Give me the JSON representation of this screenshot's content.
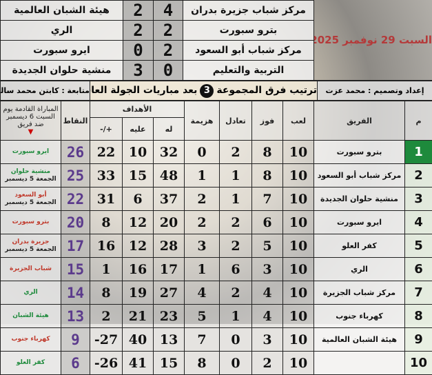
{
  "matches": {
    "date": "السبت 29 نوفمبر 2025",
    "items": [
      {
        "home": "مركز شباب جزيرة بدران",
        "home_score": "4",
        "away_score": "2",
        "away": "هيئة الشبان العالمية"
      },
      {
        "home": "بترو سبورت",
        "home_score": "2",
        "away_score": "2",
        "away": "الري"
      },
      {
        "home": "مركز شباب أبو السعود",
        "home_score": "2",
        "away_score": "0",
        "away": "ايرو سبورت"
      },
      {
        "home": "التربية والتعليم",
        "home_score": "0",
        "away_score": "3",
        "away": "منشية حلوان الجديدة"
      }
    ]
  },
  "title": {
    "prepared_by": "إعداد وتصميم : محمد عزت",
    "main_before": "ترتيب فرق المجموعة",
    "group": "3",
    "main_after": "بعد مباريات الجولة العاشرة",
    "follow_up": "متابعة : كابتن محمد سالم"
  },
  "headers": {
    "rank": "م",
    "team": "الفريق",
    "played": "لعب",
    "won": "فوز",
    "drawn": "تعادل",
    "lost": "هزيمة",
    "goals": "الأهداف",
    "for": "له",
    "against": "عليه",
    "diff": "+/-",
    "points": "النقاط",
    "next": "المباراة القادمة يوم السبت 6 ديسمبر ضد فريق",
    "next_marker": "▼"
  },
  "colors": {
    "leader": "#1e8a3c",
    "points": "#5b3a8c",
    "date": "#b43a3a"
  },
  "rows": [
    {
      "rank": "1",
      "team": "بترو سبورت",
      "played": "10",
      "won": "8",
      "drawn": "2",
      "lost": "0",
      "for": "32",
      "against": "10",
      "diff": "22",
      "points": "26",
      "next": "ايرو سبورت",
      "next_color": "g",
      "next_date": ""
    },
    {
      "rank": "2",
      "team": "مركز شباب أبو السعود",
      "played": "10",
      "won": "8",
      "drawn": "1",
      "lost": "1",
      "for": "48",
      "against": "15",
      "diff": "33",
      "points": "25",
      "next": "منشية حلوان",
      "next_color": "g",
      "next_date": "الجمعة 5 ديسمبر"
    },
    {
      "rank": "3",
      "team": "منشية حلوان الجديدة",
      "played": "10",
      "won": "7",
      "drawn": "1",
      "lost": "2",
      "for": "37",
      "against": "6",
      "diff": "31",
      "points": "22",
      "next": "أبو السعود",
      "next_color": "r",
      "next_date": "الجمعة 5 ديسمبر"
    },
    {
      "rank": "4",
      "team": "ايرو سبورت",
      "played": "10",
      "won": "6",
      "drawn": "2",
      "lost": "2",
      "for": "20",
      "against": "12",
      "diff": "8",
      "points": "20",
      "next": "بترو سبورت",
      "next_color": "r",
      "next_date": ""
    },
    {
      "rank": "5",
      "team": "كفر العلو",
      "played": "10",
      "won": "5",
      "drawn": "2",
      "lost": "3",
      "for": "28",
      "against": "12",
      "diff": "16",
      "points": "17",
      "next": "جزيرة بدران",
      "next_color": "r",
      "next_date": "الجمعة 5 ديسمبر"
    },
    {
      "rank": "6",
      "team": "الري",
      "played": "10",
      "won": "3",
      "drawn": "6",
      "lost": "1",
      "for": "17",
      "against": "16",
      "diff": "1",
      "points": "15",
      "next": "شباب الجزيرة",
      "next_color": "r",
      "next_date": ""
    },
    {
      "rank": "7",
      "team": "مركز شباب الجزيرة",
      "played": "10",
      "won": "4",
      "drawn": "2",
      "lost": "4",
      "for": "27",
      "against": "19",
      "diff": "8",
      "points": "14",
      "next": "الري",
      "next_color": "g",
      "next_date": ""
    },
    {
      "rank": "8",
      "team": "كهرباء جنوب",
      "played": "10",
      "won": "4",
      "drawn": "1",
      "lost": "5",
      "for": "23",
      "against": "21",
      "diff": "2",
      "points": "13",
      "next": "هيئة الشبان",
      "next_color": "g",
      "next_date": ""
    },
    {
      "rank": "9",
      "team": "هيئة الشبان العالمية",
      "played": "10",
      "won": "3",
      "drawn": "0",
      "lost": "7",
      "for": "13",
      "against": "40",
      "diff": "27-",
      "points": "9",
      "next": "كهرباء جنوب",
      "next_color": "r",
      "next_date": ""
    },
    {
      "rank": "10",
      "team": "",
      "played": "10",
      "won": "2",
      "drawn": "0",
      "lost": "8",
      "for": "15",
      "against": "41",
      "diff": "26-",
      "points": "6",
      "next": "كفر العلو",
      "next_color": "g",
      "next_date": ""
    }
  ]
}
